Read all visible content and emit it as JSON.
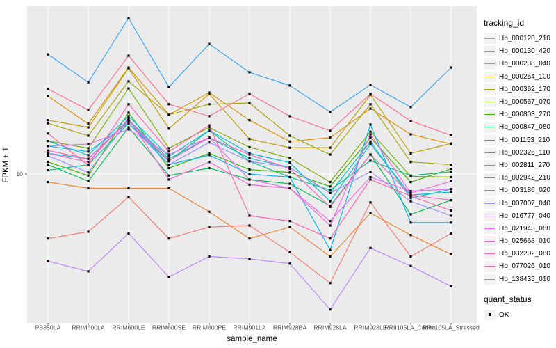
{
  "figure": {
    "background": "#FFFFFF",
    "panel_background": "#EBEBEB",
    "gridline_color": "#FFFFFF",
    "axis_text_color": "#4D4D4D",
    "axis_tick_color": "#333333",
    "marker_color": "#000000"
  },
  "axes": {
    "x_title": "sample_name",
    "y_title": "FPKM + 1",
    "y_tick_label": "10"
  },
  "legend": {
    "tracking_title": "tracking_id",
    "quant_title": "quant_status",
    "quant_ok_label": "OK"
  },
  "chart_data": {
    "type": "line",
    "x_type": "categorical",
    "y_scale": "log10",
    "y_axis_ticks": [
      10
    ],
    "y_range_approx": [
      1.43,
      89
    ],
    "grid": "major-on",
    "legend_position": "right",
    "marker": "filled-black-square",
    "xlabel": "sample_name",
    "ylabel": "FPKM + 1",
    "categories": [
      "PB350LA",
      "RRIM600LA",
      "RRIM600LE",
      "RRIM600SE",
      "RRIM600PE",
      "RRIM901LA",
      "RRIM928BA",
      "RRIM928LA",
      "RRIM928LE",
      "RRII105LA_Control",
      "RRII105LA_Stressed"
    ],
    "series": [
      {
        "name": "Hb_000120_210",
        "color": "#F8766D",
        "values": [
          4.3,
          4.7,
          7.4,
          4.3,
          5.0,
          5.1,
          3.6,
          2.4,
          6.9,
          3.4,
          4.6
        ]
      },
      {
        "name": "Hb_000130_420",
        "color": "#EA8331",
        "values": [
          9.0,
          8.3,
          8.3,
          8.3,
          6.1,
          4.3,
          5.0,
          3.4,
          6.0,
          4.5,
          3.5
        ]
      },
      {
        "name": "Hb_000238_040",
        "color": "#D89000",
        "values": [
          27.7,
          19.3,
          40.2,
          21.7,
          29.0,
          20.2,
          15.3,
          16.1,
          23.5,
          16.8,
          14.8
        ]
      },
      {
        "name": "Hb_000254_100",
        "color": "#C09B00",
        "values": [
          20.2,
          18.4,
          39.9,
          18.1,
          28.5,
          15.8,
          14.1,
          14.1,
          28.2,
          13.1,
          14.9
        ]
      },
      {
        "name": "Hb_000362_170",
        "color": "#A3A500",
        "values": [
          19.4,
          16.5,
          33.6,
          21.7,
          24.9,
          25.3,
          16.5,
          12.9,
          24.9,
          11.7,
          11.3
        ]
      },
      {
        "name": "Hb_000567_070",
        "color": "#7CAE00",
        "values": [
          15.4,
          14.0,
          30.6,
          14.0,
          18.4,
          14.2,
          12.3,
          9.0,
          17.4,
          9.7,
          9.6
        ]
      },
      {
        "name": "Hb_000803_270",
        "color": "#39B600",
        "values": [
          11.7,
          9.8,
          22.3,
          10.8,
          13.1,
          10.6,
          10.2,
          8.5,
          16.1,
          9.0,
          10.7
        ]
      },
      {
        "name": "Hb_000847_080",
        "color": "#00BB4E",
        "values": [
          11.3,
          9.1,
          18.4,
          9.8,
          10.8,
          9.3,
          8.8,
          6.6,
          12.9,
          5.9,
          7.1
        ]
      },
      {
        "name": "Hb_001153_210",
        "color": "#00C087",
        "values": [
          10.5,
          11.3,
          19.4,
          11.8,
          17.7,
          11.8,
          9.6,
          8.1,
          11.9,
          9.8,
          10.3
        ]
      },
      {
        "name": "Hb_002326_110",
        "color": "#00C0B8",
        "values": [
          13.1,
          12.2,
          20.3,
          12.2,
          16.1,
          12.3,
          10.9,
          7.8,
          15.3,
          7.3,
          8.2
        ]
      },
      {
        "name": "Hb_002811_270",
        "color": "#00BCD8",
        "values": [
          15.4,
          12.8,
          21.3,
          12.6,
          17.7,
          13.1,
          11.6,
          7.0,
          14.8,
          7.6,
          7.9
        ]
      },
      {
        "name": "Hb_002942_210",
        "color": "#00B0F6",
        "values": [
          14.4,
          13.4,
          19.4,
          11.3,
          12.8,
          10.0,
          9.6,
          3.7,
          19.1,
          5.3,
          5.3
        ]
      },
      {
        "name": "Hb_003186_020",
        "color": "#35A2FF",
        "values": [
          47.8,
          33.2,
          76.8,
          31.2,
          54.8,
          37.8,
          31.8,
          22.5,
          32.1,
          24.0,
          40.2
        ]
      },
      {
        "name": "Hb_007007_040",
        "color": "#9590FF",
        "values": [
          12.7,
          10.2,
          20.2,
          11.3,
          15.1,
          11.8,
          10.9,
          7.8,
          10.3,
          7.0,
          5.8
        ]
      },
      {
        "name": "Hb_016777_040",
        "color": "#B983FF",
        "values": [
          3.2,
          2.8,
          4.6,
          2.6,
          3.4,
          3.3,
          3.1,
          1.7,
          3.8,
          3.0,
          2.3
        ]
      },
      {
        "name": "Hb_021943_080",
        "color": "#E76BF3",
        "values": [
          14.4,
          14.8,
          17.9,
          12.9,
          16.1,
          9.3,
          8.3,
          5.4,
          9.6,
          8.0,
          8.2
        ]
      },
      {
        "name": "Hb_025668_010",
        "color": "#FA62DB",
        "values": [
          13.1,
          11.7,
          20.7,
          9.3,
          11.7,
          8.7,
          8.3,
          5.1,
          16.8,
          7.8,
          9.1
        ]
      },
      {
        "name": "Hb_032202_080",
        "color": "#FF61C7",
        "values": [
          13.6,
          12.2,
          20.0,
          11.9,
          16.1,
          12.9,
          10.7,
          6.5,
          12.9,
          7.6,
          7.1
        ]
      },
      {
        "name": "Hb_077026_010",
        "color": "#FF62A8",
        "values": [
          17.0,
          11.2,
          24.9,
          13.4,
          18.9,
          5.8,
          5.4,
          4.3,
          9.3,
          7.5,
          6.2
        ]
      },
      {
        "name": "Hb_138435_010",
        "color": "#FF6B8D",
        "values": [
          30.4,
          23.1,
          47.0,
          24.9,
          21.3,
          28.5,
          21.3,
          17.6,
          28.5,
          20.0,
          16.6
        ]
      }
    ]
  }
}
